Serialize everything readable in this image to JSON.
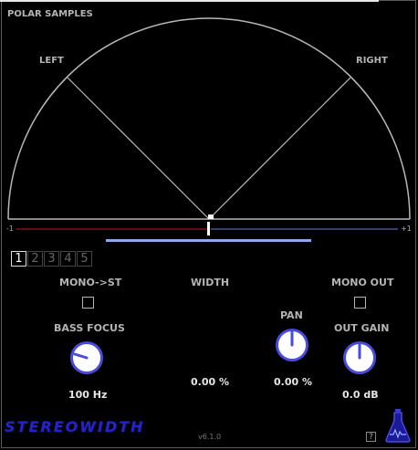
{
  "header": {
    "title": "POLAR SAMPLES"
  },
  "polar": {
    "left_label": "LEFT",
    "right_label": "RIGHT"
  },
  "correlation": {
    "min_label": "-1",
    "max_label": "+1",
    "value": 0.0
  },
  "presets": [
    "1",
    "2",
    "3",
    "4",
    "5"
  ],
  "active_preset": 0,
  "controls": {
    "mono_to_stereo": {
      "label": "MONO->ST",
      "checked": false
    },
    "width": {
      "label": "WIDTH",
      "value": "0.00 %"
    },
    "mono_out": {
      "label": "MONO OUT",
      "checked": false
    },
    "bass_focus": {
      "label": "BASS FOCUS",
      "value": "100 Hz"
    },
    "pan": {
      "label": "PAN",
      "value": "0.00 %"
    },
    "out_gain": {
      "label": "OUT GAIN",
      "value": "0.0 dB"
    }
  },
  "footer": {
    "brand": "STEREOWIDTH",
    "version": "v6.1.0",
    "help_label": "?"
  },
  "icons": {
    "help": "question-icon",
    "logo": "flask-icon"
  },
  "colors": {
    "accent": "#4a4adc",
    "brand": "#2222d8",
    "meter_left": "#c02020",
    "meter_right": "#6a80d8",
    "width_bar": "#8ea8f0"
  }
}
